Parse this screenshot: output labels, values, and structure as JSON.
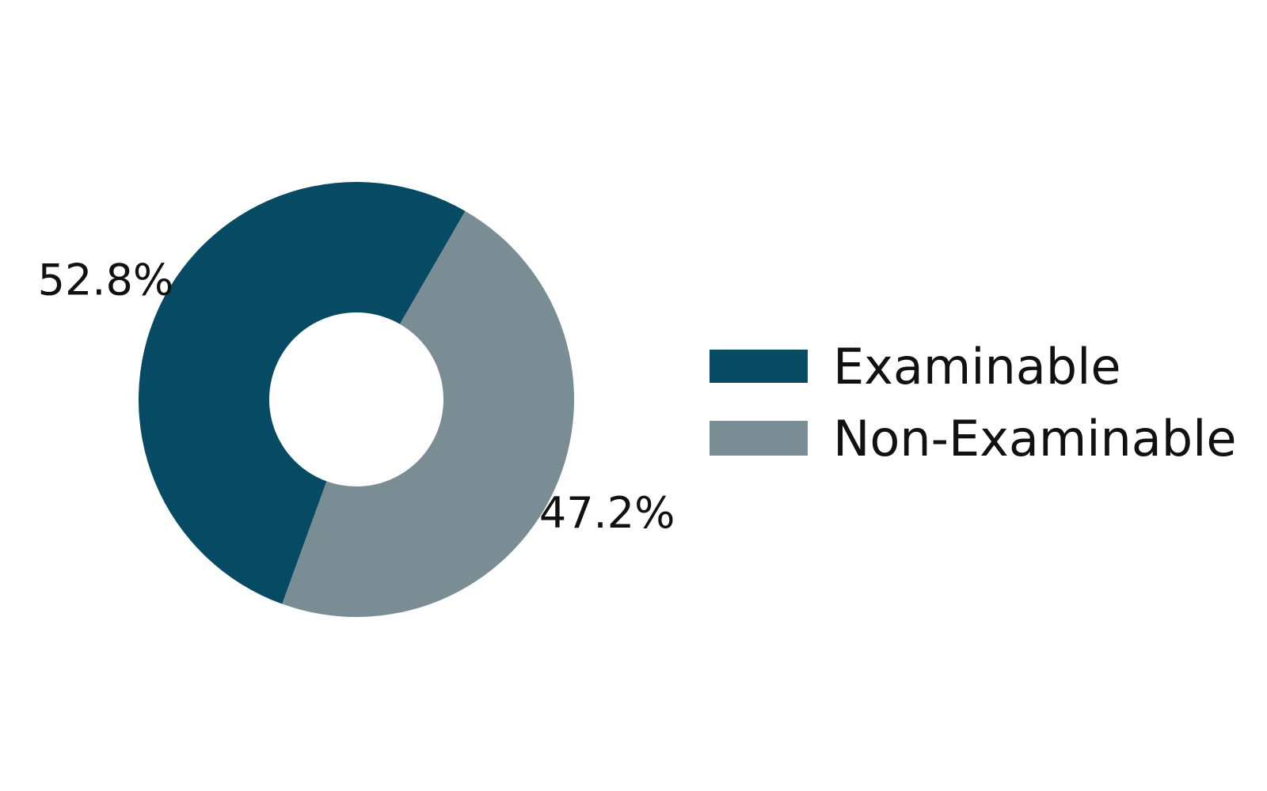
{
  "chart_data": {
    "type": "pie",
    "donut": true,
    "slices": [
      {
        "label": "Examinable",
        "value": 52.8,
        "display": "52.8%",
        "color": "#064a63"
      },
      {
        "label": "Non-Examinable",
        "value": 47.2,
        "display": "47.2%",
        "color": "#7b8d94"
      }
    ],
    "legend": {
      "position": "right",
      "entries": [
        "Examinable",
        "Non-Examinable"
      ]
    },
    "title": ""
  }
}
